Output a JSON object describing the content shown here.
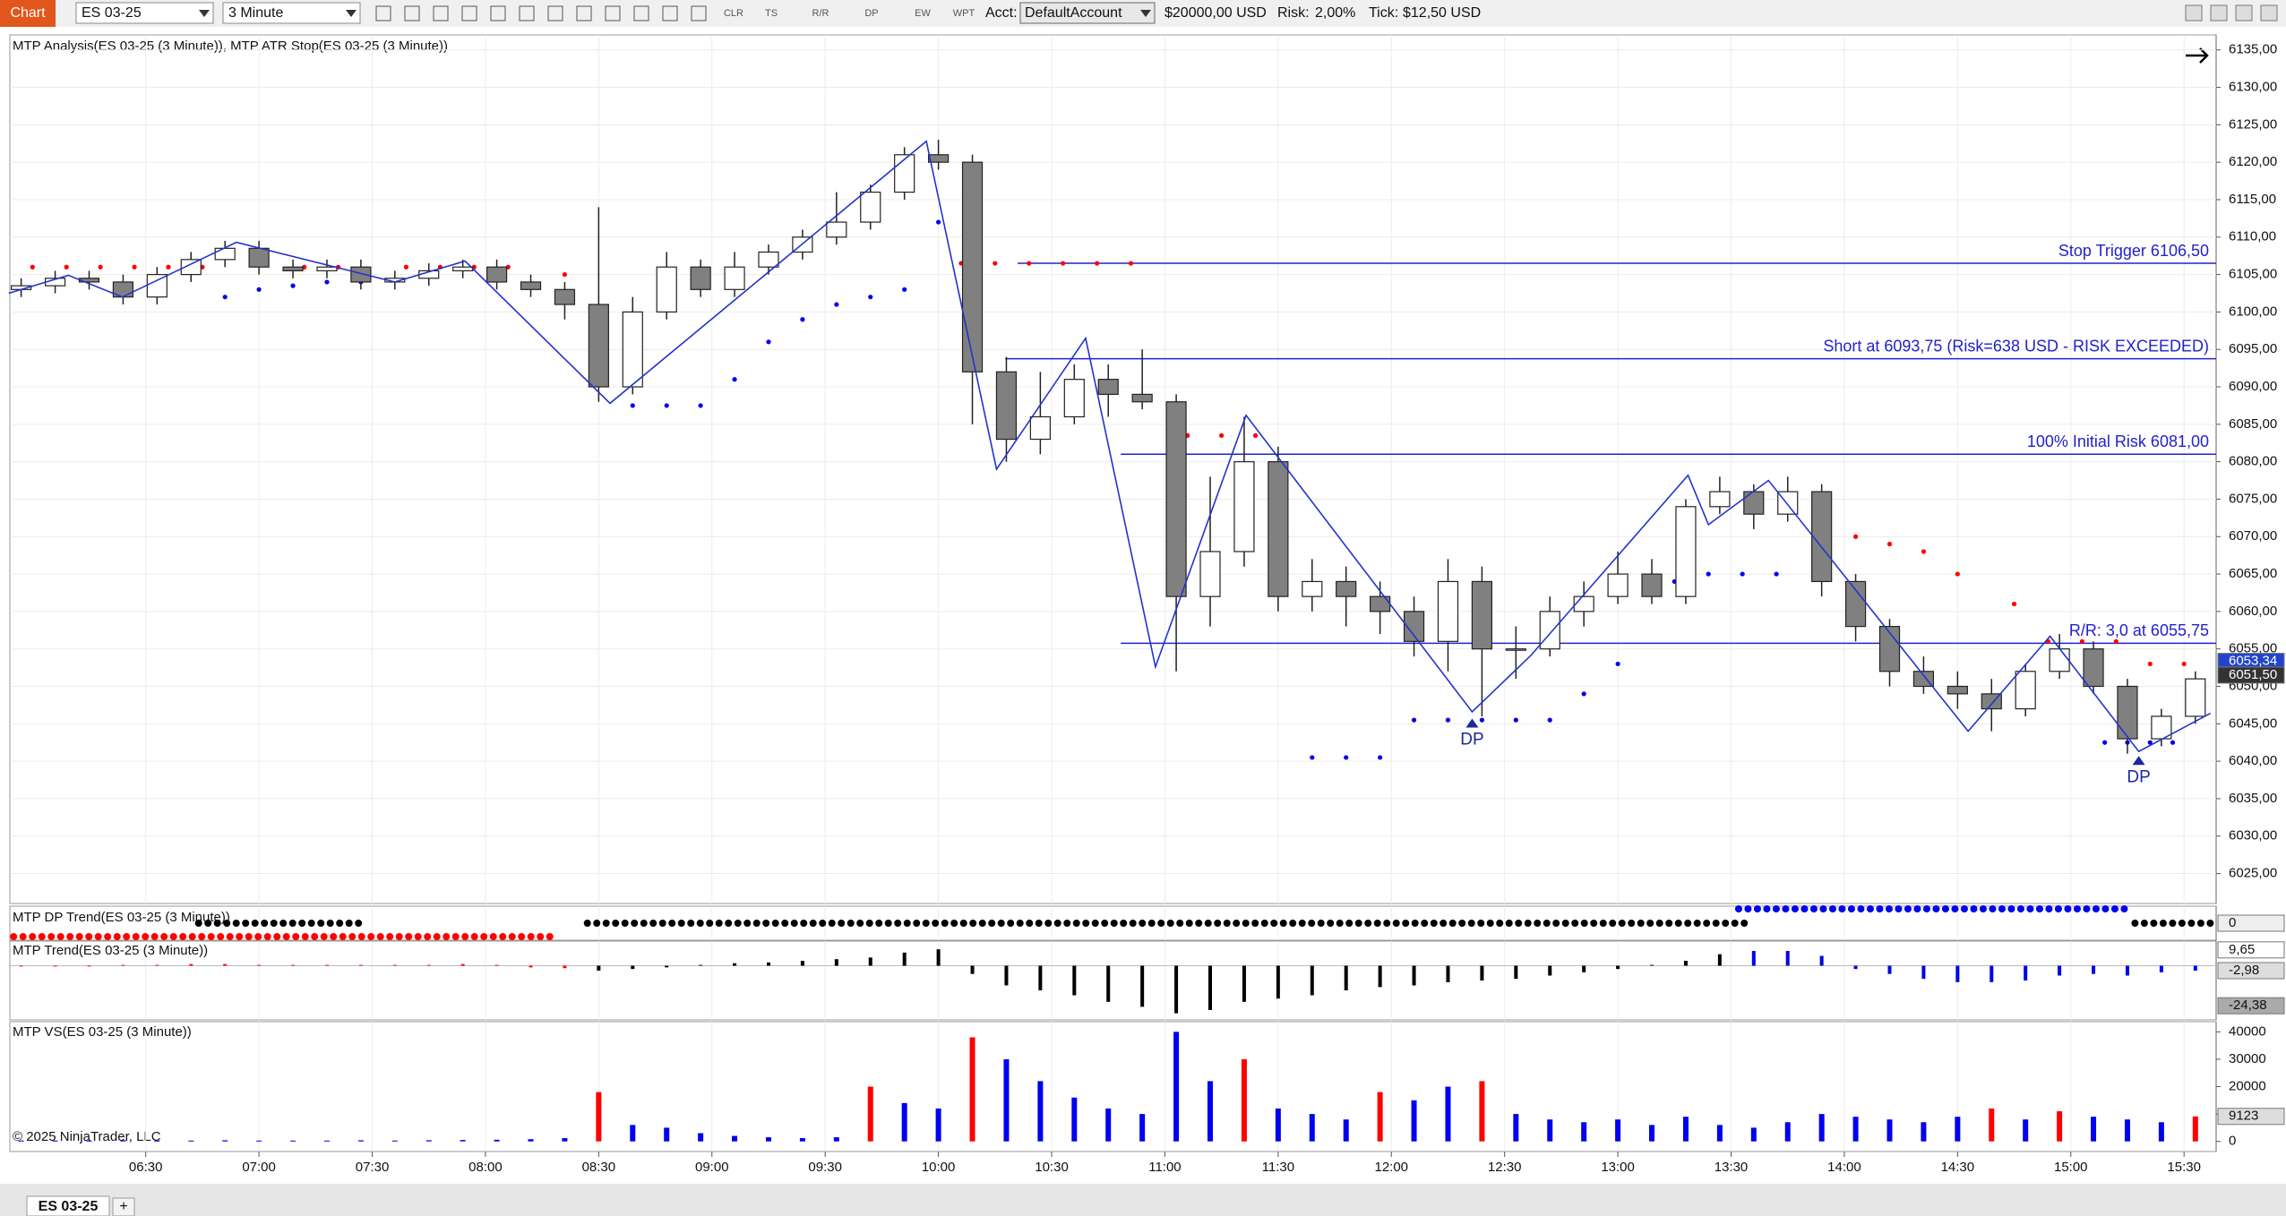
{
  "toolbar": {
    "chart_tab": "Chart",
    "instrument": "ES 03-25",
    "interval": "3 Minute",
    "tools": [
      "CLR",
      "TS",
      "R/R",
      "DP",
      "EW",
      "WPT"
    ],
    "acct_label": "Acct:",
    "account": "DefaultAccount",
    "balance": "$20000,00 USD",
    "risk_label": "Risk:",
    "risk": "2,00%",
    "tick_label": "Tick:",
    "tick": "$12,50 USD"
  },
  "chart_data": [
    {
      "type": "candlestick",
      "title": "MTP Analysis(ES 03-25 (3 Minute)), MTP ATR Stop(ES 03-25 (3 Minute))",
      "x": [
        357,
        366,
        375,
        384,
        393,
        402,
        411,
        420,
        429,
        438,
        447,
        456,
        465,
        474,
        483,
        492,
        501,
        510,
        519,
        528,
        537,
        546,
        555,
        564,
        573,
        582,
        591,
        600,
        609,
        618,
        627,
        636,
        645,
        654,
        663,
        672,
        681,
        690,
        699,
        708,
        717,
        726,
        735,
        744,
        753,
        762,
        771,
        780,
        789,
        798,
        807,
        816,
        825,
        834,
        843,
        852,
        861,
        870,
        879,
        888,
        897,
        906,
        915,
        924,
        933
      ],
      "open": [
        6103,
        6103.5,
        6104.5,
        6104,
        6102,
        6105,
        6107,
        6108.5,
        6106,
        6105.5,
        6106,
        6104,
        6104.5,
        6105.5,
        6106,
        6104,
        6103,
        6101,
        6090,
        6100,
        6106,
        6103,
        6106,
        6108,
        6110,
        6112,
        6116,
        6121,
        6120,
        6092,
        6083,
        6086,
        6091,
        6089,
        6088,
        6062,
        6068,
        6080,
        6062,
        6064,
        6062,
        6060,
        6056,
        6064,
        6055,
        6055,
        6060,
        6062,
        6065,
        6062,
        6074,
        6076,
        6073,
        6076,
        6064,
        6058,
        6052,
        6050,
        6049,
        6047,
        6052,
        6055,
        6050,
        6043,
        6046
      ],
      "high": [
        6104.5,
        6105.5,
        6105.5,
        6105,
        6106,
        6108,
        6109.5,
        6109.5,
        6107,
        6107,
        6107,
        6105.5,
        6106.5,
        6107,
        6107,
        6105,
        6104,
        6114,
        6102,
        6108,
        6107,
        6108,
        6109,
        6111,
        6116,
        6117,
        6122,
        6123,
        6121,
        6094,
        6092,
        6093,
        6093,
        6095,
        6089,
        6078,
        6086,
        6082,
        6067,
        6066,
        6064,
        6062,
        6067,
        6066,
        6058,
        6062,
        6064,
        6068,
        6067,
        6075,
        6078,
        6077,
        6078,
        6077,
        6065,
        6059,
        6054,
        6052,
        6051,
        6053,
        6057,
        6056,
        6051,
        6047,
        6052
      ],
      "low": [
        6102,
        6102.5,
        6103,
        6101,
        6101,
        6104,
        6106,
        6105,
        6104.5,
        6104.5,
        6103,
        6103,
        6103.5,
        6104.5,
        6103,
        6102,
        6099,
        6088,
        6089,
        6099,
        6102,
        6102,
        6105,
        6107,
        6109,
        6111,
        6115,
        6119,
        6085,
        6080,
        6081,
        6085,
        6086,
        6087,
        6052,
        6058,
        6066,
        6060,
        6060,
        6058,
        6057,
        6054,
        6052,
        6046,
        6051,
        6054,
        6058,
        6061,
        6061,
        6061,
        6073,
        6071,
        6072,
        6062,
        6056,
        6050,
        6049,
        6047,
        6044,
        6046,
        6051,
        6049,
        6041,
        6042,
        6045
      ],
      "close": [
        6103.5,
        6104.5,
        6104,
        6102,
        6105,
        6107,
        6108.5,
        6106,
        6105.5,
        6106,
        6104,
        6104.5,
        6105.5,
        6106,
        6104,
        6103,
        6101,
        6090,
        6100,
        6106,
        6103,
        6106,
        6108,
        6110,
        6112,
        6116,
        6121,
        6120,
        6092,
        6083,
        6086,
        6091,
        6089,
        6088,
        6062,
        6068,
        6080,
        6062,
        6064,
        6062,
        6060,
        6056,
        6064,
        6055,
        6055,
        6060,
        6062,
        6065,
        6062,
        6074,
        6076,
        6073,
        6076,
        6064,
        6058,
        6052,
        6050,
        6049,
        6047,
        6052,
        6055,
        6050,
        6043,
        6046,
        6051
      ],
      "up_color": "#ffffff",
      "down_color": "#808080",
      "xlim": [
        354,
        938.5
      ],
      "ylim": [
        6021,
        6137
      ],
      "xticks": [
        {
          "value": 390,
          "label": "06:30"
        },
        {
          "value": 420,
          "label": "07:00"
        },
        {
          "value": 450,
          "label": "07:30"
        },
        {
          "value": 480,
          "label": "08:00"
        },
        {
          "value": 510,
          "label": "08:30"
        },
        {
          "value": 540,
          "label": "09:00"
        },
        {
          "value": 570,
          "label": "09:30"
        },
        {
          "value": 600,
          "label": "10:00"
        },
        {
          "value": 630,
          "label": "10:30"
        },
        {
          "value": 660,
          "label": "11:00"
        },
        {
          "value": 690,
          "label": "11:30"
        },
        {
          "value": 720,
          "label": "12:00"
        },
        {
          "value": 750,
          "label": "12:30"
        },
        {
          "value": 780,
          "label": "13:00"
        },
        {
          "value": 810,
          "label": "13:30"
        },
        {
          "value": 840,
          "label": "14:00"
        },
        {
          "value": 870,
          "label": "14:30"
        },
        {
          "value": 900,
          "label": "15:00"
        },
        {
          "value": 930,
          "label": "15:30"
        }
      ],
      "yticks": [
        {
          "value": 6025,
          "label": "6025,00"
        },
        {
          "value": 6030,
          "label": "6030,00"
        },
        {
          "value": 6035,
          "label": "6035,00"
        },
        {
          "value": 6040,
          "label": "6040,00"
        },
        {
          "value": 6045,
          "label": "6045,00"
        },
        {
          "value": 6050,
          "label": "6050,00"
        },
        {
          "value": 6055,
          "label": "6055,00"
        },
        {
          "value": 6060,
          "label": "6060,00"
        },
        {
          "value": 6065,
          "label": "6065,00"
        },
        {
          "value": 6070,
          "label": "6070,00"
        },
        {
          "value": 6075,
          "label": "6075,00"
        },
        {
          "value": 6080,
          "label": "6080,00"
        },
        {
          "value": 6085,
          "label": "6085,00"
        },
        {
          "value": 6090,
          "label": "6090,00"
        },
        {
          "value": 6095,
          "label": "6095,00"
        },
        {
          "value": 6100,
          "label": "6100,00"
        },
        {
          "value": 6105,
          "label": "6105,00"
        },
        {
          "value": 6110,
          "label": "6110,00"
        },
        {
          "value": 6115,
          "label": "6115,00"
        },
        {
          "value": 6120,
          "label": "6120,00"
        },
        {
          "value": 6125,
          "label": "6125,00"
        },
        {
          "value": 6130,
          "label": "6130,00"
        },
        {
          "value": 6135,
          "label": "6135,00"
        }
      ],
      "grid": true,
      "zigzag": {
        "color": "#2233cc",
        "x": [
          353.7,
          369.5,
          383.8,
          414,
          456,
          474.6,
          513,
          596.8,
          615.4,
          639,
          657.5,
          681.5,
          741.4,
          756.9,
          798.6,
          804,
          819.9,
          872.8,
          894.5,
          918,
          937
        ],
        "values": [
          6102.5,
          6104.9,
          6102,
          6109.3,
          6104,
          6106.8,
          6087.8,
          6122.8,
          6079,
          6096.5,
          6052.6,
          6086.2,
          6046.6,
          6054.1,
          6078.2,
          6071.6,
          6077.5,
          6044,
          6056.7,
          6041.3,
          6046.4
        ]
      },
      "levels": [
        {
          "value": 6106.5,
          "label": "Stop Trigger 6106,50",
          "from": 621
        },
        {
          "value": 6093.75,
          "label": "Short at 6093,75 (Risk=638 USD - RISK EXCEEDED)",
          "from": 617.7
        },
        {
          "value": 6081,
          "label": "100% Initial Risk 6081,00",
          "from": 648.3
        },
        {
          "value": 6055.75,
          "label": "R/R: 3,0 at 6055,75",
          "from": 648.3
        }
      ],
      "level_color": "#2222cc",
      "stops": [
        {
          "color": "#ff0000",
          "x": [
            360,
            369,
            378,
            387,
            396,
            405,
            432,
            441,
            459,
            468,
            477,
            486,
            501,
            606,
            615,
            624,
            633,
            642,
            651,
            666,
            675,
            684,
            825,
            834,
            843,
            852,
            861,
            870,
            885,
            894,
            903,
            912,
            921,
            930
          ],
          "values": [
            6106,
            6106,
            6106,
            6106,
            6106,
            6106,
            6106,
            6106,
            6106,
            6106,
            6106,
            6106,
            6105,
            6106.5,
            6106.5,
            6106.5,
            6106.5,
            6106.5,
            6106.5,
            6083.5,
            6083.5,
            6083.5,
            6075.5,
            6073,
            6070,
            6069,
            6068,
            6065,
            6061,
            6056,
            6056,
            6056,
            6053,
            6053
          ]
        },
        {
          "color": "#0000ee",
          "x": [
            411,
            420,
            429,
            438,
            447,
            519,
            528,
            537,
            546,
            555,
            564,
            573,
            582,
            591,
            600,
            699,
            708,
            717,
            726,
            735,
            744,
            753,
            762,
            771,
            780,
            795,
            804,
            813,
            822,
            909,
            915,
            921,
            927
          ],
          "values": [
            6102,
            6103,
            6103.5,
            6104,
            6104,
            6087.5,
            6087.5,
            6087.5,
            6091,
            6096,
            6099,
            6101,
            6102,
            6103,
            6112,
            6040.5,
            6040.5,
            6040.5,
            6045.5,
            6045.5,
            6045.5,
            6045.5,
            6045.5,
            6049,
            6053,
            6064,
            6065,
            6065,
            6065,
            6042.5,
            6042.5,
            6042.5,
            6042.5
          ]
        }
      ],
      "annotations": [
        {
          "x": 741.4,
          "y": 6044.5,
          "label": "DP"
        },
        {
          "x": 918,
          "y": 6039.5,
          "label": "DP"
        }
      ],
      "price_markers": [
        {
          "value": 6053.34,
          "label": "6053,34",
          "color": "#2244cc"
        },
        {
          "value": 6051.5,
          "label": "6051,50",
          "color": "#333333"
        }
      ]
    },
    {
      "type": "dots",
      "title": "MTP DP Trend(ES 03-25 (3 Minute))",
      "segments": [
        {
          "from": 355,
          "to": 498,
          "color": "#ff0000"
        },
        {
          "from": 404,
          "to": 448,
          "color": "#000000"
        },
        {
          "from": 507,
          "to": 815,
          "color": "#000000"
        },
        {
          "from": 812,
          "to": 916,
          "color": "#0000ee"
        },
        {
          "from": 917,
          "to": 938,
          "color": "#000000"
        }
      ],
      "markers": [
        0
      ]
    },
    {
      "type": "trend",
      "title": "MTP Trend(ES 03-25 (3 Minute))",
      "values": [
        -0.5,
        -0.5,
        -0.5,
        0.5,
        0.5,
        1,
        1,
        0.5,
        0.5,
        0.5,
        0.5,
        0.5,
        0.5,
        1,
        0.5,
        -1,
        -1.5,
        -3,
        -2,
        -1,
        0.5,
        1.5,
        2,
        3,
        4,
        5,
        8,
        10,
        -5,
        -12,
        -15,
        -18,
        -22,
        -25,
        -29,
        -27,
        -22,
        -20,
        -18,
        -15,
        -13,
        -12,
        -10,
        -9,
        -8,
        -6,
        -4,
        -2,
        0.5,
        3,
        7,
        9,
        9,
        6,
        -2,
        -5,
        -8,
        -10,
        -10,
        -9,
        -6,
        -5,
        -6,
        -4,
        -3
      ],
      "colors": [
        "#ff0000",
        "#ff0000",
        "#ff0000",
        "#ff0000",
        "#ff0000",
        "#ff0000",
        "#ff0000",
        "#ff0000",
        "#ff0000",
        "#ff0000",
        "#ff0000",
        "#ff0000",
        "#ff0000",
        "#ff0000",
        "#ff0000",
        "#ff0000",
        "#ff0000",
        "#000000",
        "#000000",
        "#000000",
        "#000000",
        "#000000",
        "#000000",
        "#000000",
        "#000000",
        "#000000",
        "#000000",
        "#000000",
        "#000000",
        "#000000",
        "#000000",
        "#000000",
        "#000000",
        "#000000",
        "#000000",
        "#000000",
        "#000000",
        "#000000",
        "#000000",
        "#000000",
        "#000000",
        "#000000",
        "#000000",
        "#000000",
        "#000000",
        "#000000",
        "#000000",
        "#000000",
        "#000000",
        "#000000",
        "#000000",
        "#0000ee",
        "#0000ee",
        "#0000ee",
        "#0000ee",
        "#0000ee",
        "#0000ee",
        "#0000ee",
        "#0000ee",
        "#0000ee",
        "#0000ee",
        "#0000ee",
        "#0000ee",
        "#0000ee",
        "#0000ee"
      ],
      "ylim": [
        -33,
        15
      ],
      "markers": [
        {
          "value": 9.65,
          "label": "9,65",
          "color": "#ffffff"
        },
        {
          "value": -2.98,
          "label": "-2,98",
          "color": "#dddddd"
        },
        {
          "value": -24.38,
          "label": "-24,38",
          "color": "#aaaaaa"
        }
      ]
    },
    {
      "type": "volume",
      "title": "MTP VS(ES 03-25 (3 Minute))",
      "values": [
        300,
        300,
        300,
        400,
        300,
        300,
        400,
        300,
        300,
        300,
        400,
        300,
        400,
        500,
        600,
        800,
        1200,
        18000,
        6000,
        5000,
        3000,
        2000,
        1500,
        1200,
        1500,
        20000,
        14000,
        12000,
        38000,
        30000,
        22000,
        16000,
        12000,
        10000,
        40000,
        22000,
        30000,
        12000,
        10000,
        8000,
        18000,
        15000,
        20000,
        22000,
        10000,
        8000,
        7000,
        8000,
        6000,
        9000,
        6000,
        5000,
        7000,
        10000,
        9000,
        8000,
        7000,
        9000,
        12000,
        8000,
        11000,
        9000,
        8000,
        7000,
        9123
      ],
      "colors": [
        "#0000ee",
        "#0000ee",
        "#0000ee",
        "#0000ee",
        "#0000ee",
        "#0000ee",
        "#0000ee",
        "#0000ee",
        "#0000ee",
        "#0000ee",
        "#0000ee",
        "#0000ee",
        "#0000ee",
        "#0000ee",
        "#0000ee",
        "#0000ee",
        "#0000ee",
        "#ff0000",
        "#0000ee",
        "#0000ee",
        "#0000ee",
        "#0000ee",
        "#0000ee",
        "#0000ee",
        "#0000ee",
        "#ff0000",
        "#0000ee",
        "#0000ee",
        "#ff0000",
        "#0000ee",
        "#0000ee",
        "#0000ee",
        "#0000ee",
        "#0000ee",
        "#0000ee",
        "#0000ee",
        "#ff0000",
        "#0000ee",
        "#0000ee",
        "#0000ee",
        "#ff0000",
        "#0000ee",
        "#0000ee",
        "#ff0000",
        "#0000ee",
        "#0000ee",
        "#0000ee",
        "#0000ee",
        "#0000ee",
        "#0000ee",
        "#0000ee",
        "#0000ee",
        "#0000ee",
        "#0000ee",
        "#0000ee",
        "#0000ee",
        "#0000ee",
        "#0000ee",
        "#ff0000",
        "#0000ee",
        "#ff0000",
        "#0000ee",
        "#0000ee",
        "#0000ee",
        "#ff0000"
      ],
      "ylim": [
        -3700,
        43700
      ],
      "yticks": [
        0,
        10000,
        20000,
        30000,
        40000
      ],
      "markers": [
        {
          "value": 9123,
          "label": "9123",
          "color": "#dddddd"
        }
      ]
    }
  ],
  "footer": {
    "copyright": "© 2025 NinjaTrader, LLC",
    "tab": "ES 03-25",
    "add_tab": "+"
  }
}
